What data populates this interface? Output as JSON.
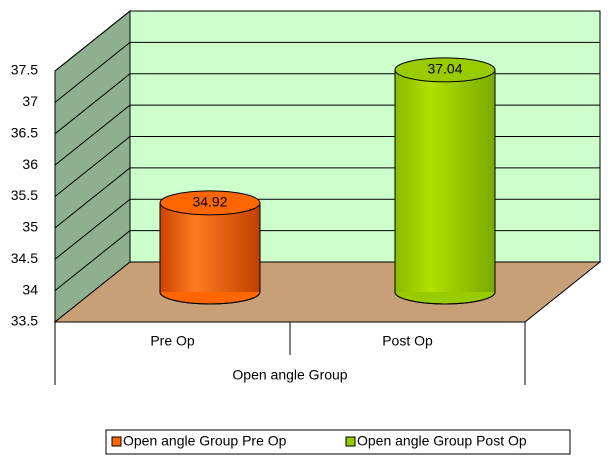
{
  "chart_data": {
    "type": "bar3d",
    "categories": [
      "Pre Op",
      "Post Op"
    ],
    "x_label": "Open angle Group",
    "series": [
      {
        "name": "Open angle Group Pre Op",
        "color": "#ff6600",
        "values": [
          34.92,
          null
        ]
      },
      {
        "name": "Open angle Group Post Op",
        "color": "#99cc00",
        "values": [
          null,
          37.04
        ]
      }
    ],
    "ylim": [
      33.5,
      37.5
    ],
    "yticks": [
      33.5,
      34,
      34.5,
      35,
      35.5,
      36,
      36.5,
      37,
      37.5
    ],
    "grid": true,
    "legend": "bottom"
  }
}
